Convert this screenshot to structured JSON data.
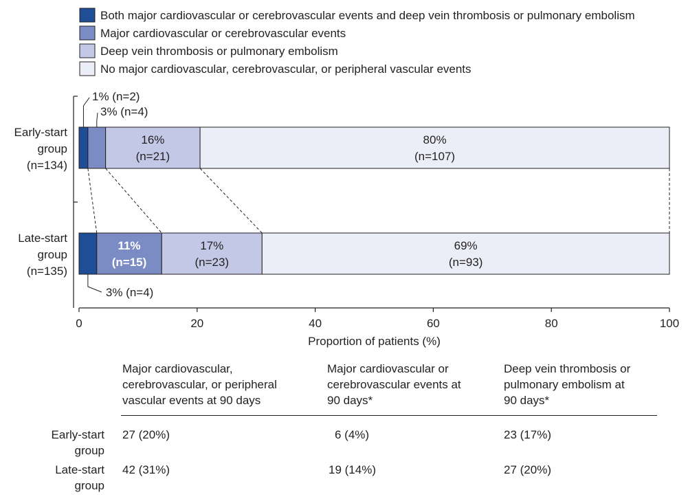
{
  "chart_data": {
    "type": "bar",
    "orientation": "horizontal",
    "stacked": true,
    "legend": [
      {
        "label": "Both major cardiovascular or cerebrovascular events and deep vein thrombosis or pulmonary embolism",
        "color": "#1f4e96"
      },
      {
        "label": "Major cardiovascular or cerebrovascular events",
        "color": "#7b8cc4"
      },
      {
        "label": "Deep vein thrombosis or pulmonary embolism",
        "color": "#c3c8e6"
      },
      {
        "label": "No major cardiovascular, cerebrovascular, or peripheral vascular events",
        "color": "#ebedf7"
      }
    ],
    "legend_position": "top-left",
    "categories": [
      {
        "label_lines": [
          "Early-start",
          "group",
          "(n=134)"
        ]
      },
      {
        "label_lines": [
          "Late-start",
          "group",
          "(n=135)"
        ]
      }
    ],
    "series_values": [
      [
        1.5,
        3,
        16,
        79.5
      ],
      [
        3,
        11,
        17,
        69
      ]
    ],
    "segment_labels": [
      [
        {
          "pct": "1% (n=2)",
          "n": "",
          "placement": "callout-above"
        },
        {
          "pct": "3% (n=4)",
          "n": "",
          "placement": "callout-above"
        },
        {
          "pct": "16%",
          "n": "(n=21)",
          "placement": "inside"
        },
        {
          "pct": "80%",
          "n": "(n=107)",
          "placement": "inside"
        }
      ],
      [
        {
          "pct": "3% (n=4)",
          "n": "",
          "placement": "callout-below"
        },
        {
          "pct": "11%",
          "n": "(n=15)",
          "placement": "inside-white"
        },
        {
          "pct": "17%",
          "n": "(n=23)",
          "placement": "inside"
        },
        {
          "pct": "69%",
          "n": "(n=93)",
          "placement": "inside"
        }
      ]
    ],
    "xlim": [
      0,
      100
    ],
    "xticks": [
      "0",
      "20",
      "40",
      "60",
      "80",
      "100"
    ],
    "xlabel": "Proportion of patients (%)",
    "connectors": "dashed lines between cumulative boundaries of the two bars"
  },
  "table": {
    "headers": [
      "Major cardiovascular, cerebrovascular, or peripheral vascular events at 90 days",
      "Major cardiovascular or cerebrovascular events at 90 days*",
      "Deep vein thrombosis or pulmonary embolism at 90 days*"
    ],
    "header_lines": [
      [
        "Major cardiovascular,",
        "cerebrovascular, or peripheral",
        "vascular events at 90 days"
      ],
      [
        "Major cardiovascular or",
        "cerebrovascular events at",
        "90 days*"
      ],
      [
        "Deep vein thrombosis or",
        "pulmonary embolism at",
        "90 days*"
      ]
    ],
    "rows": [
      {
        "label_lines": [
          "Early-start",
          "group"
        ],
        "cells": [
          "27 (20%)",
          "6 (4%)",
          "23 (17%)"
        ]
      },
      {
        "label_lines": [
          "Late-start",
          "group"
        ],
        "cells": [
          "42 (31%)",
          "19 (14%)",
          "27 (20%)"
        ]
      }
    ]
  }
}
